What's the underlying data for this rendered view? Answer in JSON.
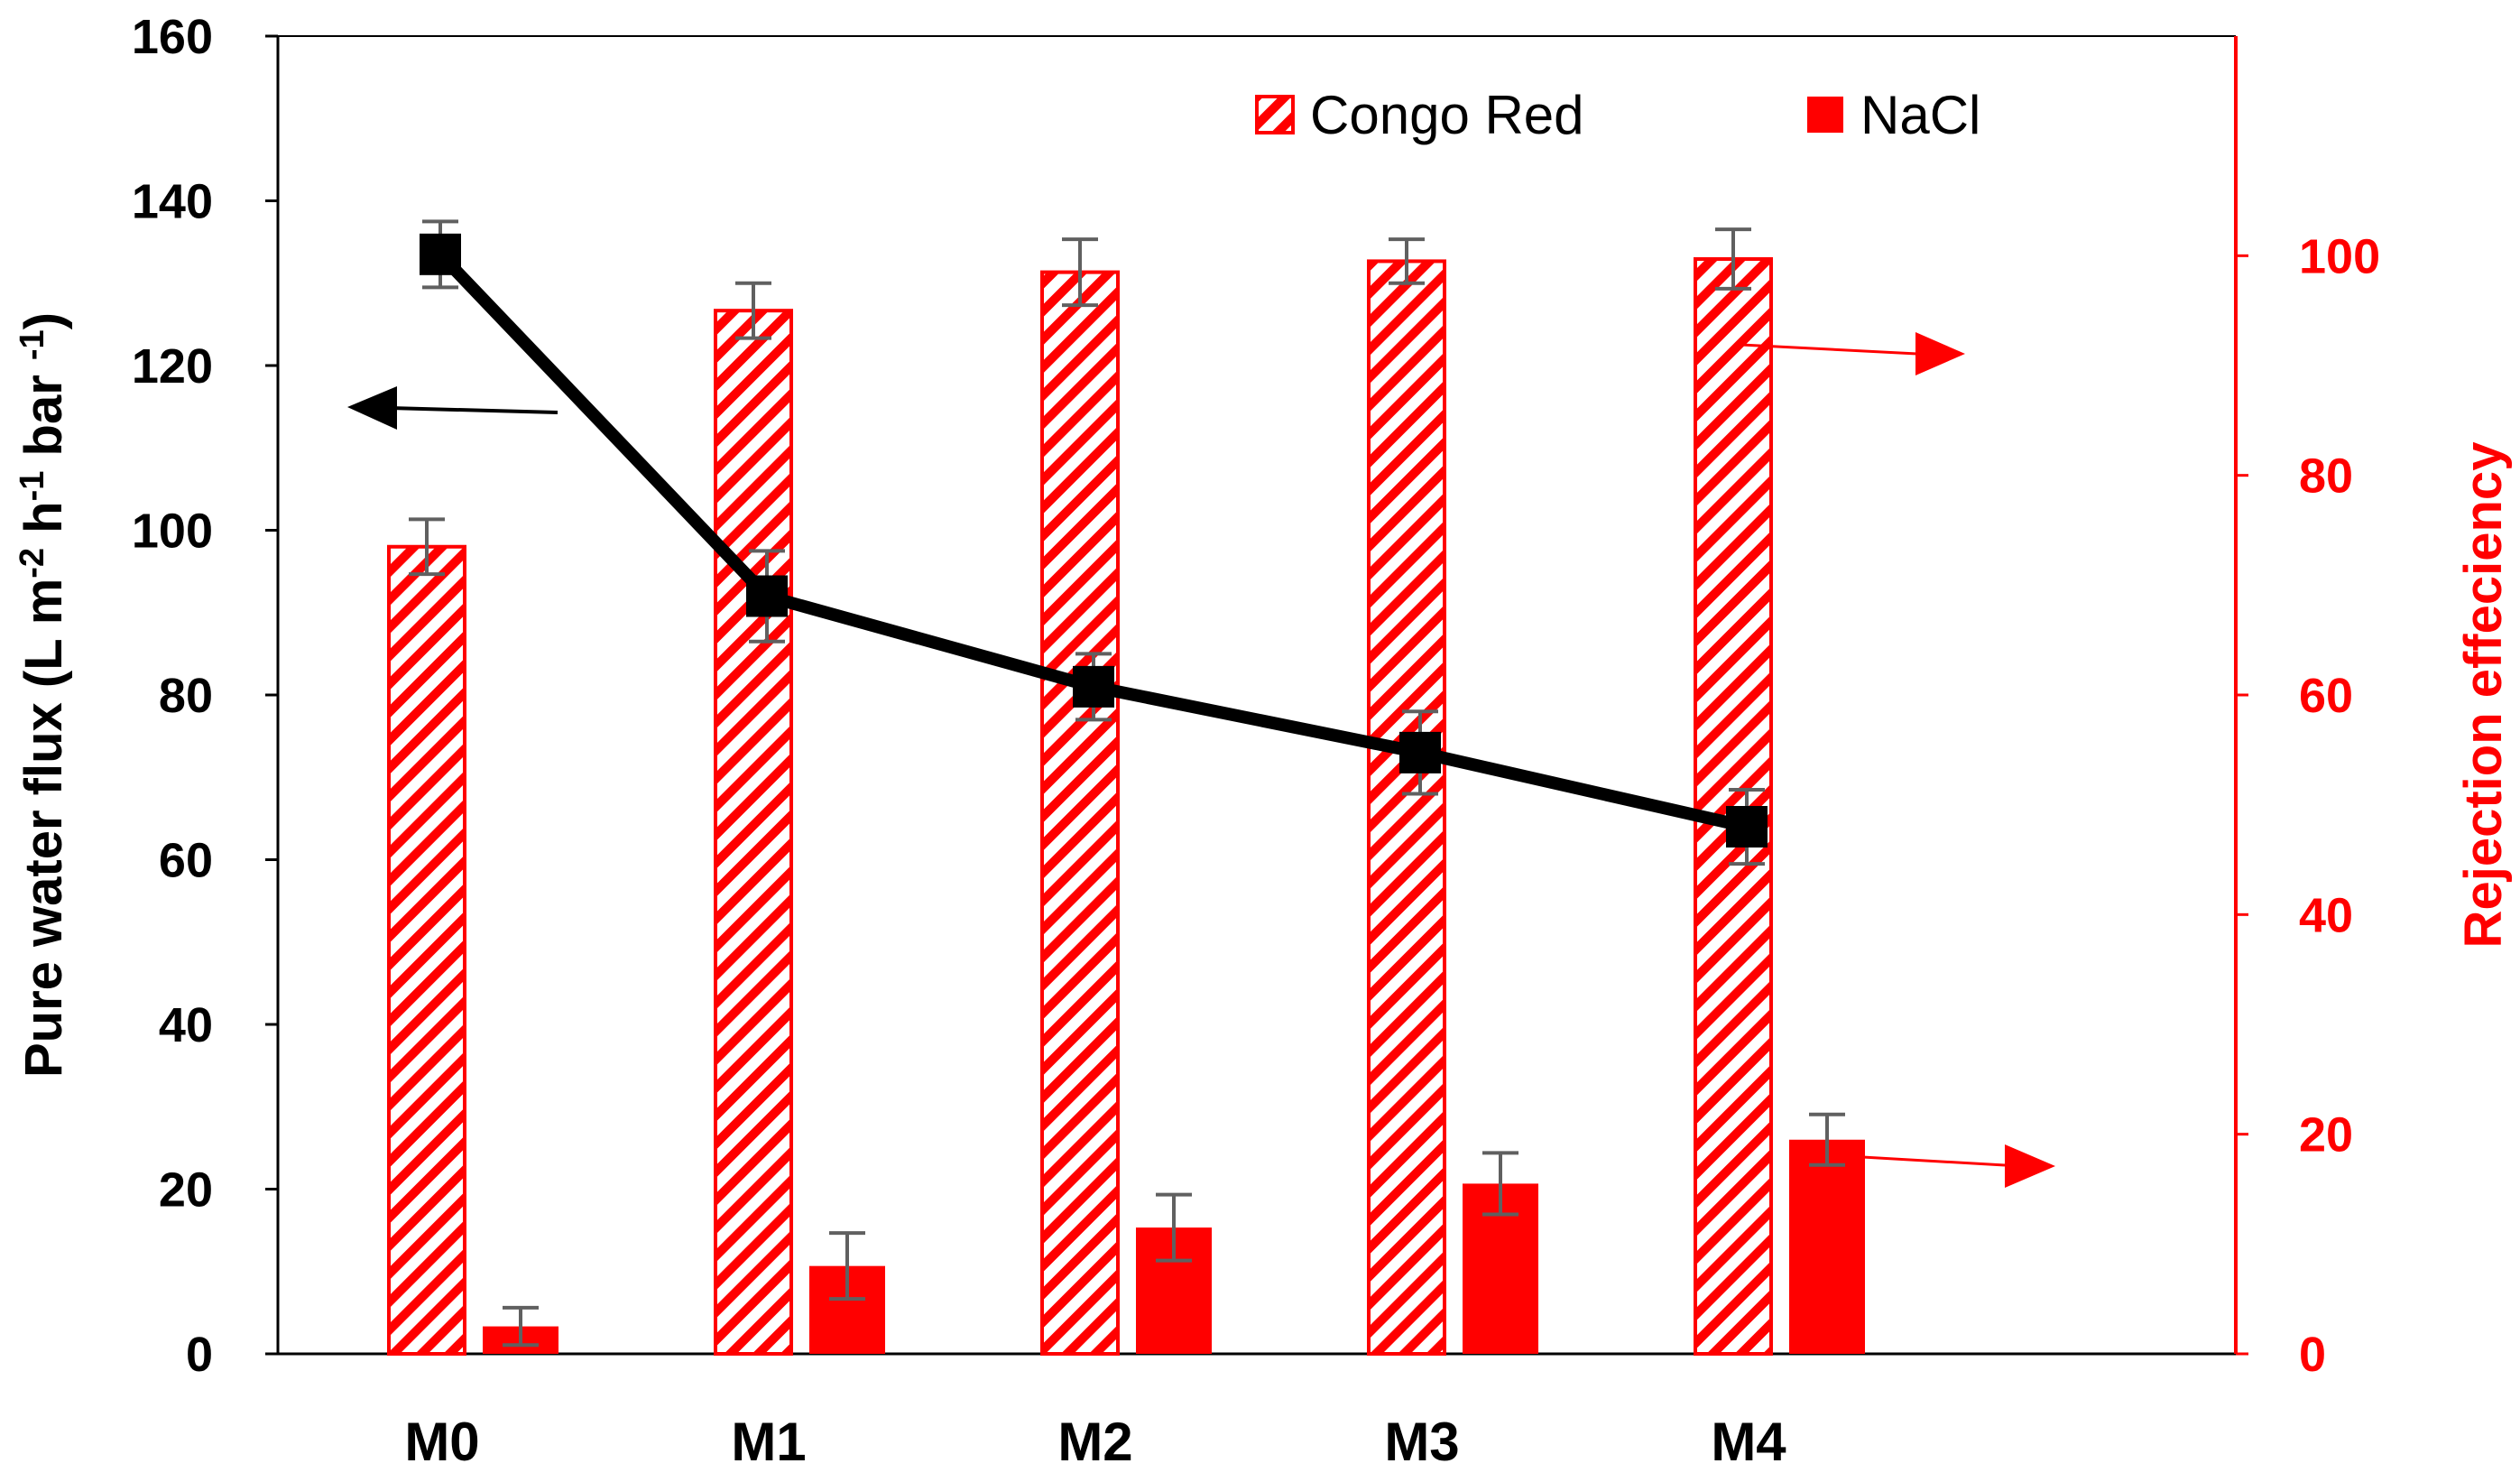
{
  "chart_data": {
    "type": "bar+line",
    "categories": [
      "M0",
      "M1",
      "M2",
      "M3",
      "M4"
    ],
    "y_left": {
      "label": "Pure water flux (L m",
      "label_sup1": "-2",
      "label_mid1": " h",
      "label_sup2": "-1",
      "label_mid2": " bar ",
      "label_sup3": "-1",
      "label_end": ")",
      "ylim": [
        0,
        160
      ],
      "ticks": [
        "0",
        "20",
        "40",
        "60",
        "80",
        "100",
        "120",
        "140",
        "160"
      ]
    },
    "y_right": {
      "label": "Rejection effeciency",
      "ylim": [
        0,
        120
      ],
      "ticks": [
        "0",
        "20",
        "40",
        "60",
        "80",
        "100"
      ],
      "color": "#ff0000"
    },
    "series": [
      {
        "name": "Pure water flux",
        "type": "line",
        "axis": "left",
        "color": "#000000",
        "values": [
          133.5,
          92,
          81,
          73,
          64
        ],
        "errors": [
          4,
          5.5,
          4,
          5,
          4.5
        ]
      },
      {
        "name": "Congo Red",
        "type": "bar",
        "axis": "right",
        "pattern": "hatched",
        "color": "#ff0000",
        "values": [
          73.5,
          95,
          98.5,
          99.5,
          99.7
        ],
        "errors": [
          2.5,
          2.5,
          3,
          2,
          2.7
        ]
      },
      {
        "name": "NaCl",
        "type": "bar",
        "axis": "right",
        "pattern": "solid",
        "color": "#ff0000",
        "values": [
          2.5,
          8,
          11.5,
          15.5,
          19.5
        ],
        "errors": [
          1.7,
          3,
          3,
          2.8,
          2.3
        ]
      }
    ],
    "legend": [
      "Congo Red",
      "NaCl"
    ],
    "legend_position": "top-right",
    "grid": false
  }
}
